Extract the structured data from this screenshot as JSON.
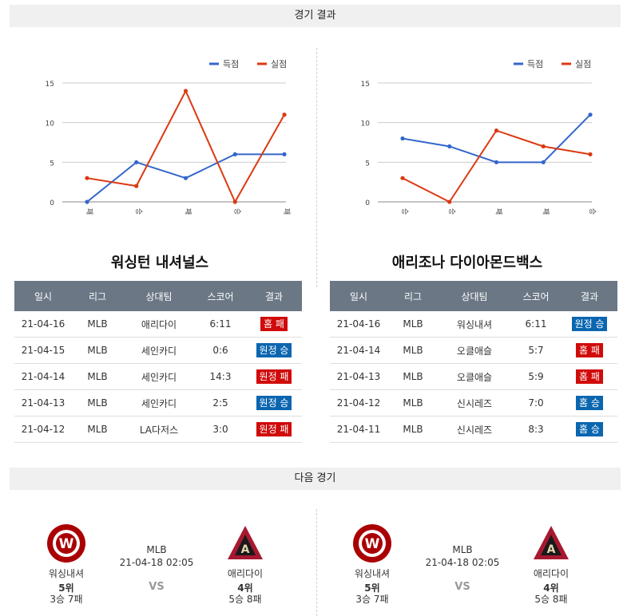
{
  "sections": {
    "results_title": "경기 결과",
    "next_title": "다음 경기"
  },
  "chart_data": [
    {
      "type": "line",
      "categories": [
        "패",
        "승",
        "패",
        "승",
        "패"
      ],
      "ylim": [
        0,
        15
      ],
      "yticks": [
        0,
        5,
        10,
        15
      ],
      "grid": true,
      "legend_position": "top-right",
      "series": [
        {
          "name": "득점",
          "color": "#3366cc",
          "values": [
            0,
            5,
            3,
            6,
            6
          ]
        },
        {
          "name": "실점",
          "color": "#dc3912",
          "values": [
            3,
            2,
            14,
            0,
            11
          ]
        }
      ]
    },
    {
      "type": "line",
      "categories": [
        "승",
        "승",
        "패",
        "패",
        "승"
      ],
      "ylim": [
        0,
        15
      ],
      "yticks": [
        0,
        5,
        10,
        15
      ],
      "grid": true,
      "legend_position": "top-right",
      "series": [
        {
          "name": "득점",
          "color": "#3366cc",
          "values": [
            8,
            7,
            5,
            5,
            11
          ]
        },
        {
          "name": "실점",
          "color": "#dc3912",
          "values": [
            3,
            0,
            9,
            7,
            6
          ]
        }
      ]
    }
  ],
  "tables": [
    {
      "team": "워싱턴 내셔널스",
      "headers": [
        "일시",
        "리그",
        "상대팀",
        "스코어",
        "결과"
      ],
      "rows": [
        {
          "date": "21-04-16",
          "league": "MLB",
          "opponent": "애리다이",
          "score": "6:11",
          "result": "홈 패",
          "type": "lose"
        },
        {
          "date": "21-04-15",
          "league": "MLB",
          "opponent": "세인카디",
          "score": "0:6",
          "result": "원정 승",
          "type": "win"
        },
        {
          "date": "21-04-14",
          "league": "MLB",
          "opponent": "세인카디",
          "score": "14:3",
          "result": "원정 패",
          "type": "lose"
        },
        {
          "date": "21-04-13",
          "league": "MLB",
          "opponent": "세인카디",
          "score": "2:5",
          "result": "원정 승",
          "type": "win"
        },
        {
          "date": "21-04-12",
          "league": "MLB",
          "opponent": "LA다저스",
          "score": "3:0",
          "result": "원정 패",
          "type": "lose"
        }
      ]
    },
    {
      "team": "애리조나 다이아몬드백스",
      "headers": [
        "일시",
        "리그",
        "상대팀",
        "스코어",
        "결과"
      ],
      "rows": [
        {
          "date": "21-04-16",
          "league": "MLB",
          "opponent": "워싱내셔",
          "score": "6:11",
          "result": "원정 승",
          "type": "win"
        },
        {
          "date": "21-04-14",
          "league": "MLB",
          "opponent": "오클애슬",
          "score": "5:7",
          "result": "홈 패",
          "type": "lose"
        },
        {
          "date": "21-04-13",
          "league": "MLB",
          "opponent": "오클애슬",
          "score": "5:9",
          "result": "홈 패",
          "type": "lose"
        },
        {
          "date": "21-04-12",
          "league": "MLB",
          "opponent": "신시레즈",
          "score": "7:0",
          "result": "홈 승",
          "type": "win"
        },
        {
          "date": "21-04-11",
          "league": "MLB",
          "opponent": "신시레즈",
          "score": "8:3",
          "result": "홈 승",
          "type": "win"
        }
      ]
    }
  ],
  "next_games": [
    {
      "league": "MLB",
      "datetime": "21-04-18 02:05",
      "vs": "VS",
      "home": {
        "name": "워싱내셔",
        "rank": "5위",
        "record": "3승 7패",
        "logo_text": "W"
      },
      "away": {
        "name": "애리다이",
        "rank": "4위",
        "record": "5승 8패",
        "logo_text": "A"
      }
    },
    {
      "league": "MLB",
      "datetime": "21-04-18 02:05",
      "vs": "VS",
      "home": {
        "name": "워싱내셔",
        "rank": "5위",
        "record": "3승 7패",
        "logo_text": "W"
      },
      "away": {
        "name": "애리다이",
        "rank": "4위",
        "record": "5승 8패",
        "logo_text": "A"
      }
    }
  ]
}
